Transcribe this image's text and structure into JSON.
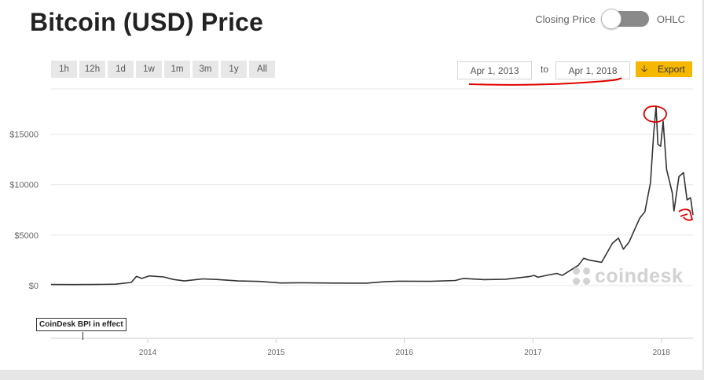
{
  "header": {
    "title": "Bitcoin (USD) Price"
  },
  "toggle": {
    "left_label": "Closing Price",
    "right_label": "OHLC"
  },
  "ranges": [
    "1h",
    "12h",
    "1d",
    "1w",
    "1m",
    "3m",
    "1y",
    "All"
  ],
  "date_range": {
    "from": "Apr 1, 2013",
    "to_label": "to",
    "to": "Apr 1, 2018"
  },
  "export": {
    "label": "Export",
    "icon": "download-arrow-icon"
  },
  "annotation": {
    "text": "CoinDesk BPI in effect"
  },
  "watermark": {
    "text": "coindesk",
    "icon": "coindesk-logo-icon"
  },
  "colors": {
    "line": "#333333",
    "accent": "#f6b701",
    "markup": "#e00000",
    "grid": "#e8e8e8"
  },
  "chart_data": {
    "type": "line",
    "title": "",
    "xlabel": "",
    "ylabel": "",
    "ylim": [
      -400,
      19500
    ],
    "xlim": [
      "2013-04-01",
      "2018-04-01"
    ],
    "y_ticks": [
      0,
      5000,
      10000,
      15000
    ],
    "y_tick_labels": [
      "$0",
      "$5000",
      "$10000",
      "$15000"
    ],
    "x_ticks": [
      "2014-01-01",
      "2015-01-01",
      "2016-01-01",
      "2017-01-01",
      "2018-01-01"
    ],
    "x_tick_labels": [
      "2014",
      "2015",
      "2016",
      "2017",
      "2018"
    ],
    "grid": true,
    "series": [
      {
        "x": [
          "2013-04-01",
          "2013-06-01",
          "2013-08-01",
          "2013-10-01",
          "2013-11-15",
          "2013-11-30",
          "2013-12-15",
          "2014-01-05",
          "2014-02-15",
          "2014-03-15",
          "2014-04-15",
          "2014-06-05",
          "2014-07-15",
          "2014-09-15",
          "2014-11-15",
          "2015-01-15",
          "2015-03-15",
          "2015-06-15",
          "2015-09-15",
          "2015-11-05",
          "2015-12-15",
          "2016-03-15",
          "2016-05-25",
          "2016-06-17",
          "2016-08-15",
          "2016-10-15",
          "2016-12-20",
          "2017-01-04",
          "2017-01-15",
          "2017-02-15",
          "2017-03-10",
          "2017-03-25",
          "2017-05-10",
          "2017-05-25",
          "2017-06-12",
          "2017-07-15",
          "2017-08-15",
          "2017-09-01",
          "2017-09-15",
          "2017-10-01",
          "2017-10-20",
          "2017-11-01",
          "2017-11-15",
          "2017-12-01",
          "2017-12-10",
          "2017-12-17",
          "2017-12-22",
          "2017-12-30",
          "2018-01-06",
          "2018-01-16",
          "2018-02-01",
          "2018-02-06",
          "2018-02-20",
          "2018-03-05",
          "2018-03-15",
          "2018-03-25",
          "2018-04-01"
        ],
        "y": [
          100,
          90,
          100,
          130,
          300,
          900,
          700,
          950,
          850,
          600,
          450,
          650,
          600,
          450,
          400,
          250,
          270,
          240,
          230,
          370,
          430,
          410,
          500,
          700,
          580,
          620,
          880,
          1000,
          820,
          1050,
          1200,
          1000,
          2000,
          2700,
          2500,
          2300,
          4200,
          4700,
          3600,
          4300,
          5800,
          6700,
          7300,
          10200,
          15000,
          17800,
          14000,
          13800,
          16300,
          11500,
          9200,
          7400,
          10800,
          11200,
          8500,
          8700,
          7000
        ]
      }
    ],
    "annotations": [
      "CoinDesk BPI in effect"
    ]
  }
}
